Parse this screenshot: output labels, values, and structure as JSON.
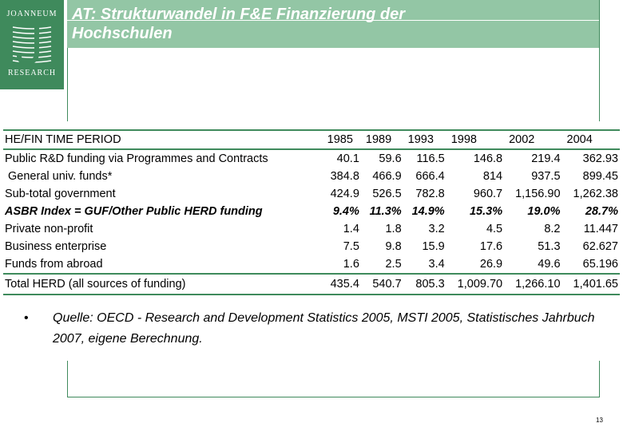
{
  "logo": {
    "top_text": "JOANNEUM",
    "bottom_text": "RESEARCH",
    "color": "#3f8a5c"
  },
  "header": {
    "title_line1": "AT: Strukturwandel in F&E Finanzierung der",
    "title_line2": "Hochschulen",
    "band_color": "#93c6a5"
  },
  "table": {
    "header": [
      "HE/FIN TIME PERIOD",
      "1985",
      "1989",
      "1993",
      "1998",
      "2002",
      "2004"
    ],
    "rows": [
      {
        "label": "Public R&D funding via Programmes and Contracts",
        "values": [
          "40.1",
          "59.6",
          "116.5",
          "146.8",
          "219.4",
          "362.93"
        ]
      },
      {
        "label": " General univ. funds*",
        "values": [
          "384.8",
          "466.9",
          "666.4",
          "814",
          "937.5",
          "899.45"
        ]
      },
      {
        "label": "Sub-total government",
        "values": [
          "424.9",
          "526.5",
          "782.8",
          "960.7",
          "1,156.90",
          "1,262.38"
        ]
      },
      {
        "label": "ASBR Index = GUF/Other Public HERD funding",
        "values": [
          "9.4%",
          "11.3%",
          "14.9%",
          "15.3%",
          "19.0%",
          "28.7%"
        ]
      },
      {
        "label": "Private non-profit",
        "values": [
          "1.4",
          "1.8",
          "3.2",
          "4.5",
          "8.2",
          "11.447"
        ]
      },
      {
        "label": "Business enterprise",
        "values": [
          "7.5",
          "9.8",
          "15.9",
          "17.6",
          "51.3",
          "62.627"
        ]
      },
      {
        "label": "Funds from abroad",
        "values": [
          "1.6",
          "2.5",
          "3.4",
          "26.9",
          "49.6",
          "65.196"
        ]
      }
    ],
    "total": {
      "label": "Total HERD (all sources of funding)",
      "values": [
        "435.4",
        "540.7",
        "805.3",
        "1,009.70",
        "1,266.10",
        "1,401.65"
      ]
    }
  },
  "bullet": {
    "symbol": "•",
    "text": "Quelle: OECD - Research and Development Statistics 2005, MSTI 2005, Statistisches Jahrbuch 2007, eigene Berechnung."
  },
  "page_number": "13"
}
